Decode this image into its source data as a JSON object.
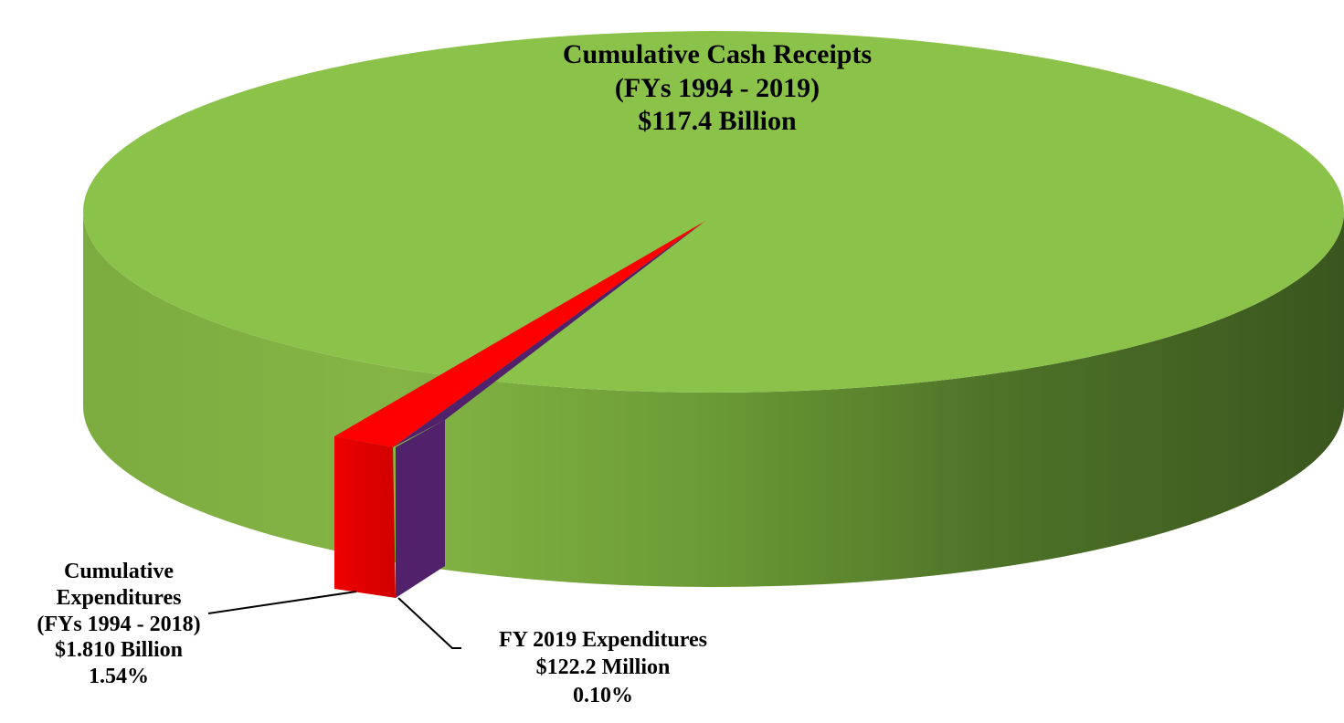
{
  "chart_data": {
    "type": "pie",
    "style": "3d",
    "slices": [
      {
        "id": "receipts",
        "title": "Cumulative Cash Receipts",
        "period": "(FYs 1994 - 2019)",
        "amount": "$117.4 Billion",
        "value": 117.4,
        "color": "#8bc34a"
      },
      {
        "id": "cumulative_expenditures",
        "title_line1": "Cumulative",
        "title_line2": "Expenditures",
        "period": "(FYs 1994 - 2018)",
        "amount": "$1.810 Billion",
        "percent": "1.54%",
        "value": 1.81,
        "color": "#ff0000"
      },
      {
        "id": "fy2019_expenditures",
        "title": "FY 2019 Expenditures",
        "amount": "$122.2 Million",
        "percent": "0.10%",
        "value": 0.1222,
        "color": "#52216b"
      }
    ]
  }
}
